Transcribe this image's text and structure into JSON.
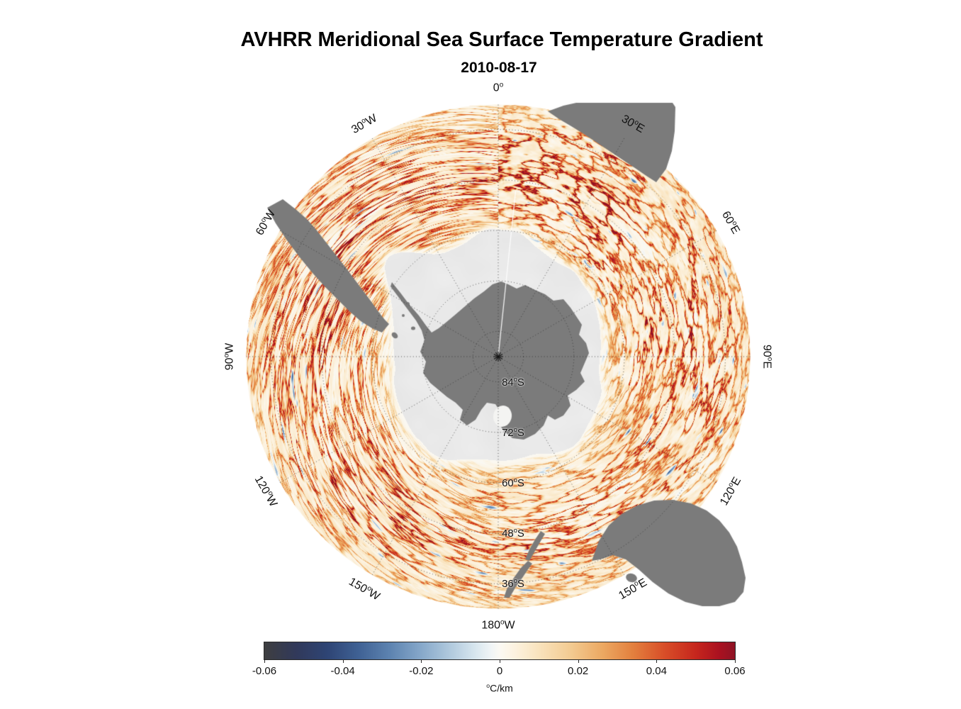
{
  "title": "AVHRR Meridional Sea Surface Temperature Gradient",
  "subtitle": "2010-08-17",
  "chart_data": {
    "type": "heatmap",
    "projection": "south_polar_stereographic",
    "date": "2010-08-17",
    "variable": "Meridional Sea Surface Temperature Gradient",
    "units": "°C/km",
    "value_range": [
      -0.06,
      0.06
    ],
    "colorbar": {
      "min": -0.06,
      "max": 0.06,
      "orientation": "horizontal",
      "position": "bottom",
      "tick_labels": [
        "-0.06",
        "-0.04",
        "-0.02",
        "0",
        "0.02",
        "0.04",
        "0.06"
      ],
      "unit_label": "°C/km",
      "stops": [
        {
          "value": -0.06,
          "color": "#3e3e40"
        },
        {
          "value": -0.052,
          "color": "#31395a"
        },
        {
          "value": -0.044,
          "color": "#2e4474"
        },
        {
          "value": -0.036,
          "color": "#3f6194"
        },
        {
          "value": -0.028,
          "color": "#5d83b0"
        },
        {
          "value": -0.02,
          "color": "#86a8ca"
        },
        {
          "value": -0.012,
          "color": "#b4ccdf"
        },
        {
          "value": -0.006,
          "color": "#d9e7ef"
        },
        {
          "value": -0.002,
          "color": "#f1f5f6"
        },
        {
          "value": 0.0,
          "color": "#fbf9f3"
        },
        {
          "value": 0.004,
          "color": "#fcf2df"
        },
        {
          "value": 0.01,
          "color": "#f9e3bd"
        },
        {
          "value": 0.018,
          "color": "#f3cb92"
        },
        {
          "value": 0.026,
          "color": "#eca963"
        },
        {
          "value": 0.034,
          "color": "#e3803e"
        },
        {
          "value": 0.042,
          "color": "#d84e28"
        },
        {
          "value": 0.05,
          "color": "#c6261d"
        },
        {
          "value": 0.056,
          "color": "#aa1120"
        },
        {
          "value": 0.06,
          "color": "#8e1325"
        }
      ]
    },
    "graticule": {
      "outer_boundary_degrees_south": 30,
      "latitude_ring_degrees_south": [
        84,
        72,
        60,
        48,
        36
      ],
      "latitude_ring_labels": [
        "84°S",
        "72°S",
        "60°S",
        "48°S",
        "36°S"
      ],
      "longitude_spokes": [
        {
          "azimuth": 0,
          "label": "0°"
        },
        {
          "azimuth": 30,
          "label": "30°E"
        },
        {
          "azimuth": 60,
          "label": "60°E"
        },
        {
          "azimuth": 90,
          "label": "90°E"
        },
        {
          "azimuth": 120,
          "label": "120°E"
        },
        {
          "azimuth": 150,
          "label": "150°E"
        },
        {
          "azimuth": 180,
          "label": "180°W"
        },
        {
          "azimuth": 210,
          "label": "150°W"
        },
        {
          "azimuth": 240,
          "label": "120°W"
        },
        {
          "azimuth": 270,
          "label": "90°W"
        },
        {
          "azimuth": 300,
          "label": "60°W"
        },
        {
          "azimuth": 330,
          "label": "30°W"
        }
      ]
    },
    "colors": {
      "land": "#7b7b7b",
      "ice_interior": "#e9e9e9",
      "background": "#ffffff"
    }
  }
}
